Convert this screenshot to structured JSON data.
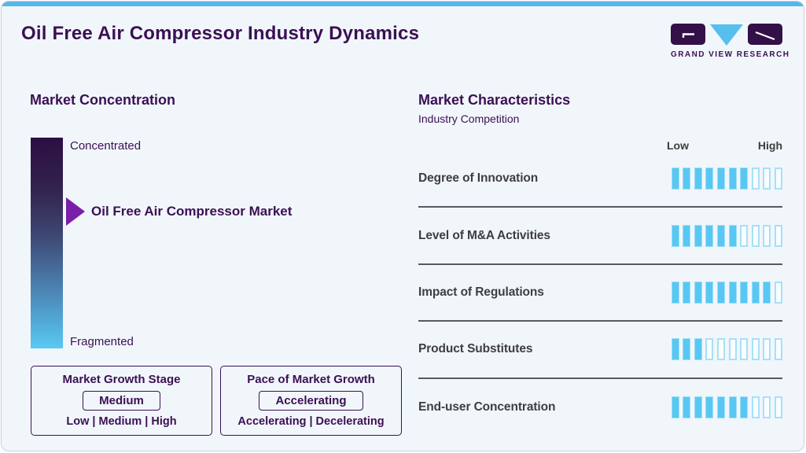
{
  "header": {
    "title": "Oil Free Air Compressor Industry Dynamics",
    "brand": "GRAND VIEW RESEARCH"
  },
  "concentration": {
    "heading": "Market Concentration",
    "scale_top": "Concentrated",
    "scale_bottom": "Fragmented",
    "marker_label": "Oil Free Air Compressor Market",
    "growth_stage": {
      "title": "Market Growth Stage",
      "value": "Medium",
      "options": "Low | Medium | High"
    },
    "growth_pace": {
      "title": "Pace of Market Growth",
      "value": "Accelerating",
      "options": "Accelerating | Decelerating"
    }
  },
  "characteristics": {
    "heading": "Market Characteristics",
    "subheading": "Industry Competition",
    "scale_low": "Low",
    "scale_high": "High",
    "rows": [
      {
        "label": "Degree of Innovation",
        "filled": 7,
        "total": 10
      },
      {
        "label": "Level of M&A Activities",
        "filled": 6,
        "total": 10
      },
      {
        "label": "Impact of Regulations",
        "filled": 9,
        "total": 10
      },
      {
        "label": "Product Substitutes",
        "filled": 3,
        "total": 10
      },
      {
        "label": "End-user Concentration",
        "filled": 7,
        "total": 10
      }
    ]
  },
  "colors": {
    "accent_blue": "#58b7e8",
    "bar_filled_blue": "#58c7f3",
    "bar_empty_border": "#a6e0f8",
    "dark_purple": "#3b1053",
    "arrow_purple": "#7a1fa8",
    "gradient_top": "#2c0f43",
    "gradient_bottom": "#58c9f3",
    "background": "#f1f6fb"
  },
  "chart_data": {
    "type": "bar",
    "title": "Market Characteristics — Industry Competition",
    "categories": [
      "Degree of Innovation",
      "Level of M&A Activities",
      "Impact of Regulations",
      "Product Substitutes",
      "End-user Concentration"
    ],
    "values": [
      7,
      6,
      9,
      3,
      7
    ],
    "ylim": [
      0,
      10
    ],
    "ylabel": "segments filled (Low → High)",
    "xlabel": "",
    "annotations": {
      "market_concentration_scale": "Concentrated → Fragmented",
      "market_position_label": "Oil Free Air Compressor Market",
      "market_growth_stage": "Medium",
      "pace_of_market_growth": "Accelerating"
    }
  }
}
